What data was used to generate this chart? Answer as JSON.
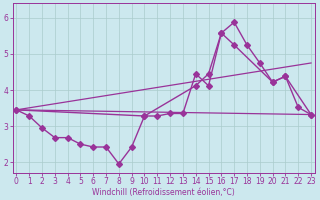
{
  "background_color": "#cce8ee",
  "grid_color": "#aacccc",
  "line_color": "#993399",
  "x_ticks": [
    0,
    1,
    2,
    3,
    4,
    5,
    6,
    7,
    8,
    9,
    10,
    11,
    12,
    13,
    14,
    15,
    16,
    17,
    18,
    19,
    20,
    21,
    22,
    23
  ],
  "y_ticks": [
    2,
    3,
    4,
    5,
    6
  ],
  "xlim": [
    -0.3,
    23.3
  ],
  "ylim": [
    1.7,
    6.4
  ],
  "xlabel": "Windchill (Refroidissement éolien,°C)",
  "series_main": {
    "x": [
      0,
      1,
      2,
      3,
      4,
      5,
      6,
      7,
      8,
      9,
      10,
      11,
      12,
      13,
      14,
      15,
      16,
      17,
      18,
      19,
      20,
      21,
      22,
      23
    ],
    "y": [
      3.45,
      3.28,
      2.95,
      2.68,
      2.68,
      2.5,
      2.42,
      2.42,
      1.95,
      2.42,
      3.28,
      3.28,
      3.35,
      3.35,
      4.45,
      4.12,
      5.58,
      5.88,
      5.25,
      4.75,
      4.22,
      4.38,
      3.52,
      3.32
    ],
    "linewidth": 1.0,
    "markersize": 3
  },
  "series_lower": {
    "x": [
      0,
      23
    ],
    "y": [
      3.45,
      3.32
    ],
    "linewidth": 0.9
  },
  "series_upper": {
    "x": [
      0,
      23
    ],
    "y": [
      3.45,
      4.75
    ],
    "linewidth": 0.9
  },
  "series_envelope": {
    "x": [
      0,
      10,
      14,
      15,
      16,
      17,
      20,
      21,
      23
    ],
    "y": [
      3.45,
      3.28,
      4.12,
      4.45,
      5.58,
      5.25,
      4.22,
      4.38,
      3.32
    ],
    "linewidth": 1.0,
    "markersize": 3
  }
}
